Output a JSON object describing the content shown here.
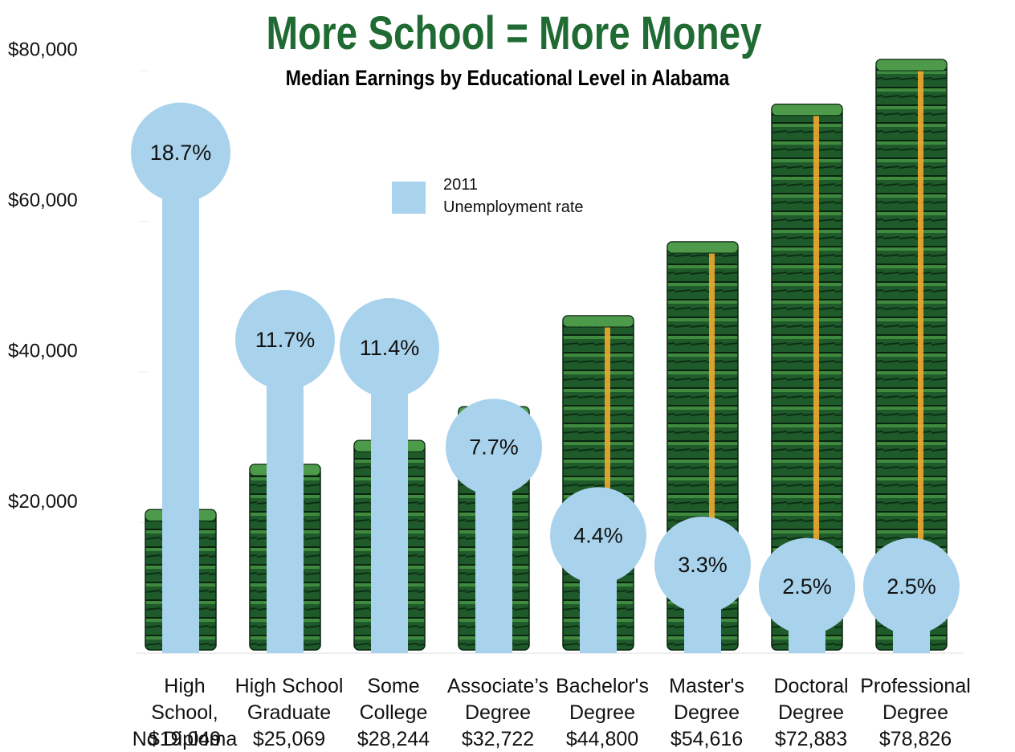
{
  "chart_data": {
    "type": "bar",
    "title": "More School = More Money",
    "subtitle": "Median Earnings by Educational Level in Alabama",
    "categories": [
      "High School,\nNo Diploma",
      "High School\nGraduate",
      "Some\nCollege",
      "Associate’s\nDegree",
      "Bachelor's\nDegree",
      "Master's\nDegree",
      "Doctoral\nDegree",
      "Professional\nDegree"
    ],
    "series": [
      {
        "name": "Median earnings",
        "color": "#1e5a2a",
        "values": [
          19049,
          25069,
          28244,
          32722,
          44800,
          54616,
          72883,
          78826
        ],
        "value_labels": [
          "$19,049",
          "$25,069",
          "$28,244",
          "$32,722",
          "$44,800",
          "$54,616",
          "$72,883",
          "$78,826"
        ]
      },
      {
        "name": "2011\nUnemployment rate",
        "color": "#a9d3ec",
        "axis": "y2",
        "values": [
          18.7,
          11.7,
          11.4,
          7.7,
          4.4,
          3.3,
          2.5,
          2.5
        ],
        "value_labels": [
          "18.7%",
          "11.7%",
          "11.4%",
          "7.7%",
          "4.4%",
          "3.3%",
          "2.5%",
          "2.5%"
        ]
      }
    ],
    "ylim": [
      0,
      80000
    ],
    "yticks": [
      {
        "value": 20000,
        "label": "$20,000"
      },
      {
        "value": 40000,
        "label": "$40,000"
      },
      {
        "value": 60000,
        "label": "$60,000"
      },
      {
        "value": 80000,
        "label": "$80,000"
      }
    ],
    "y2lim": [
      0,
      22.5
    ],
    "grid": false
  }
}
